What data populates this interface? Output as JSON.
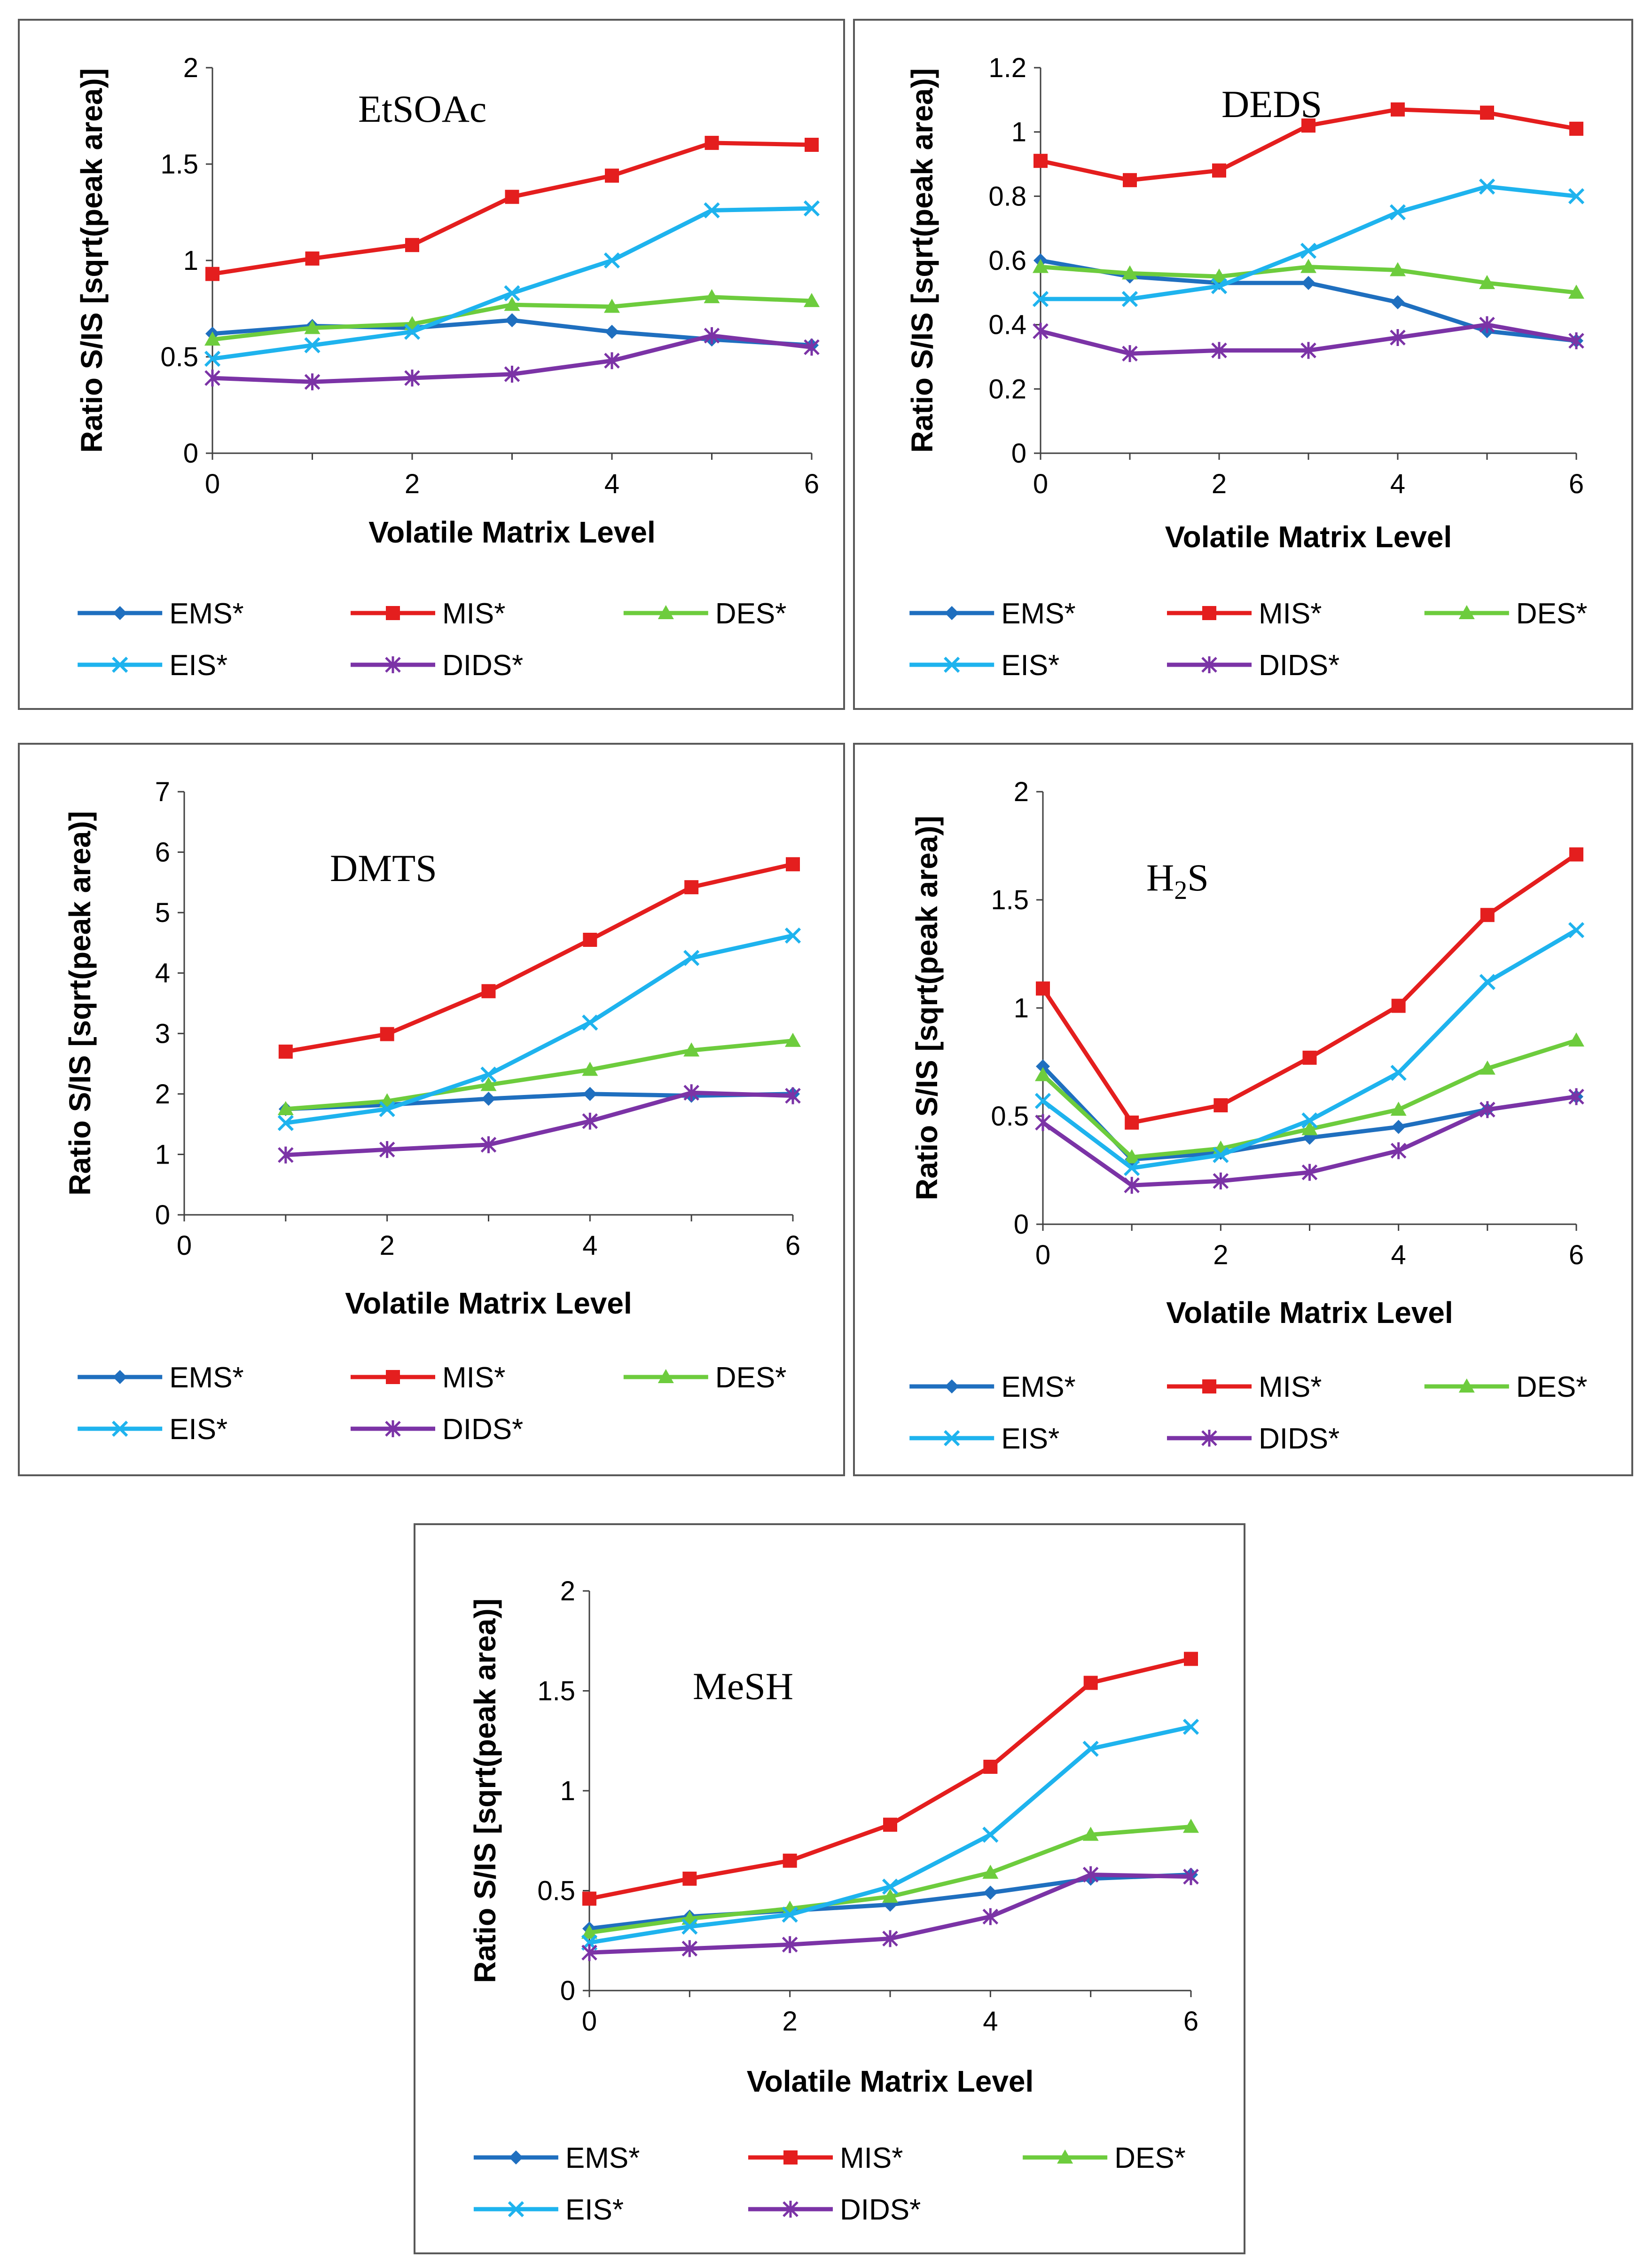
{
  "chart_data": [
    {
      "type": "line",
      "title": "EtSOAc",
      "xlabel": "Volatile Matrix Level",
      "ylabel": "Ratio S/IS [sqrt(peak area)]",
      "xlim": [
        0,
        6
      ],
      "ylim": [
        0,
        2
      ],
      "xticks": [
        "0",
        "2",
        "4",
        "6"
      ],
      "yticks": [
        "0",
        "0.5",
        "1",
        "1.5",
        "2"
      ],
      "x": [
        0,
        1,
        2,
        3,
        4,
        5,
        6
      ],
      "series": [
        {
          "name": "EMS*",
          "values": [
            0.62,
            0.66,
            0.65,
            0.69,
            0.63,
            0.59,
            0.56
          ]
        },
        {
          "name": "MIS*",
          "values": [
            0.93,
            1.01,
            1.08,
            1.33,
            1.44,
            1.61,
            1.6
          ]
        },
        {
          "name": "DES*",
          "values": [
            0.59,
            0.65,
            0.67,
            0.77,
            0.76,
            0.81,
            0.79
          ]
        },
        {
          "name": "EIS*",
          "values": [
            0.49,
            0.56,
            0.63,
            0.83,
            1.0,
            1.26,
            1.27
          ]
        },
        {
          "name": "DIDS*",
          "values": [
            0.39,
            0.37,
            0.39,
            0.41,
            0.48,
            0.61,
            0.55
          ]
        }
      ]
    },
    {
      "type": "line",
      "title": "DEDS",
      "xlabel": "Volatile Matrix Level",
      "ylabel": "Ratio S/IS [sqrt(peak area)]",
      "xlim": [
        0,
        6
      ],
      "ylim": [
        0,
        1.2
      ],
      "xticks": [
        "0",
        "2",
        "4",
        "6"
      ],
      "yticks": [
        "0",
        "0.2",
        "0.4",
        "0.6",
        "0.8",
        "1",
        "1.2"
      ],
      "x": [
        0,
        1,
        2,
        3,
        4,
        5,
        6
      ],
      "series": [
        {
          "name": "EMS*",
          "values": [
            0.6,
            0.55,
            0.53,
            0.53,
            0.47,
            0.38,
            0.35
          ]
        },
        {
          "name": "MIS*",
          "values": [
            0.91,
            0.85,
            0.88,
            1.02,
            1.07,
            1.06,
            1.01
          ]
        },
        {
          "name": "DES*",
          "values": [
            0.58,
            0.56,
            0.55,
            0.58,
            0.57,
            0.53,
            0.5
          ]
        },
        {
          "name": "EIS*",
          "values": [
            0.48,
            0.48,
            0.52,
            0.63,
            0.75,
            0.83,
            0.8
          ]
        },
        {
          "name": "DIDS*",
          "values": [
            0.38,
            0.31,
            0.32,
            0.32,
            0.36,
            0.4,
            0.35
          ]
        }
      ]
    },
    {
      "type": "line",
      "title": "DMTS",
      "xlabel": "Volatile Matrix Level",
      "ylabel": "Ratio S/IS [sqrt(peak area)]",
      "xlim": [
        0,
        6
      ],
      "ylim": [
        0,
        7
      ],
      "xticks": [
        "0",
        "2",
        "4",
        "6"
      ],
      "yticks": [
        "0",
        "1",
        "2",
        "3",
        "4",
        "5",
        "6",
        "7"
      ],
      "x": [
        1,
        2,
        3,
        4,
        5,
        6
      ],
      "series": [
        {
          "name": "EMS*",
          "values": [
            1.75,
            1.82,
            1.92,
            2.0,
            1.97,
            2.0
          ]
        },
        {
          "name": "MIS*",
          "values": [
            2.7,
            2.99,
            3.7,
            4.55,
            5.42,
            5.8
          ]
        },
        {
          "name": "DES*",
          "values": [
            1.75,
            1.88,
            2.15,
            2.4,
            2.72,
            2.88
          ]
        },
        {
          "name": "EIS*",
          "values": [
            1.52,
            1.75,
            2.32,
            3.18,
            4.25,
            4.62
          ]
        },
        {
          "name": "DIDS*",
          "values": [
            0.99,
            1.08,
            1.16,
            1.55,
            2.02,
            1.97
          ]
        }
      ]
    },
    {
      "type": "line",
      "title": "H",
      "title_sub": "2",
      "title_tail": "S",
      "xlabel": "Volatile Matrix Level",
      "ylabel": "Ratio S/IS [sqrt(peak area)]",
      "xlim": [
        0,
        6
      ],
      "ylim": [
        0,
        2
      ],
      "xticks": [
        "0",
        "2",
        "4",
        "6"
      ],
      "yticks": [
        "0",
        "0.5",
        "1",
        "1.5",
        "2"
      ],
      "x": [
        0,
        1,
        2,
        3,
        4,
        5,
        6
      ],
      "series": [
        {
          "name": "EMS*",
          "values": [
            0.73,
            0.3,
            0.33,
            0.4,
            0.45,
            0.53,
            0.59
          ]
        },
        {
          "name": "MIS*",
          "values": [
            1.09,
            0.47,
            0.55,
            0.77,
            1.01,
            1.43,
            1.71
          ]
        },
        {
          "name": "DES*",
          "values": [
            0.69,
            0.31,
            0.35,
            0.44,
            0.53,
            0.72,
            0.85
          ]
        },
        {
          "name": "EIS*",
          "values": [
            0.57,
            0.26,
            0.32,
            0.48,
            0.7,
            1.12,
            1.36
          ]
        },
        {
          "name": "DIDS*",
          "values": [
            0.47,
            0.18,
            0.2,
            0.24,
            0.34,
            0.53,
            0.59
          ]
        }
      ]
    },
    {
      "type": "line",
      "title": "MeSH",
      "xlabel": "Volatile Matrix Level",
      "ylabel": "Ratio S/IS [sqrt(peak area)]",
      "xlim": [
        0,
        6
      ],
      "ylim": [
        0,
        2
      ],
      "xticks": [
        "0",
        "2",
        "4",
        "6"
      ],
      "yticks": [
        "0",
        "0.5",
        "1",
        "1.5",
        "2"
      ],
      "x": [
        0,
        1,
        2,
        3,
        4,
        5,
        6
      ],
      "series": [
        {
          "name": "EMS*",
          "values": [
            0.31,
            0.37,
            0.4,
            0.43,
            0.49,
            0.56,
            0.58
          ]
        },
        {
          "name": "MIS*",
          "values": [
            0.46,
            0.56,
            0.65,
            0.83,
            1.12,
            1.54,
            1.66
          ]
        },
        {
          "name": "DES*",
          "values": [
            0.29,
            0.36,
            0.41,
            0.47,
            0.59,
            0.78,
            0.82
          ]
        },
        {
          "name": "EIS*",
          "values": [
            0.24,
            0.32,
            0.38,
            0.52,
            0.78,
            1.21,
            1.32
          ]
        },
        {
          "name": "DIDS*",
          "values": [
            0.19,
            0.21,
            0.23,
            0.26,
            0.37,
            0.58,
            0.57
          ]
        }
      ]
    }
  ],
  "legend": {
    "placement": "bottom",
    "items": [
      {
        "name": "EMS*",
        "color": "#1f6fbf",
        "marker": "diamond"
      },
      {
        "name": "MIS*",
        "color": "#e41e1e",
        "marker": "square"
      },
      {
        "name": "DES*",
        "color": "#6dcc3d",
        "marker": "triangle"
      },
      {
        "name": "EIS*",
        "color": "#1eb3ee",
        "marker": "x"
      },
      {
        "name": "DIDS*",
        "color": "#7b33a6",
        "marker": "star"
      }
    ]
  }
}
